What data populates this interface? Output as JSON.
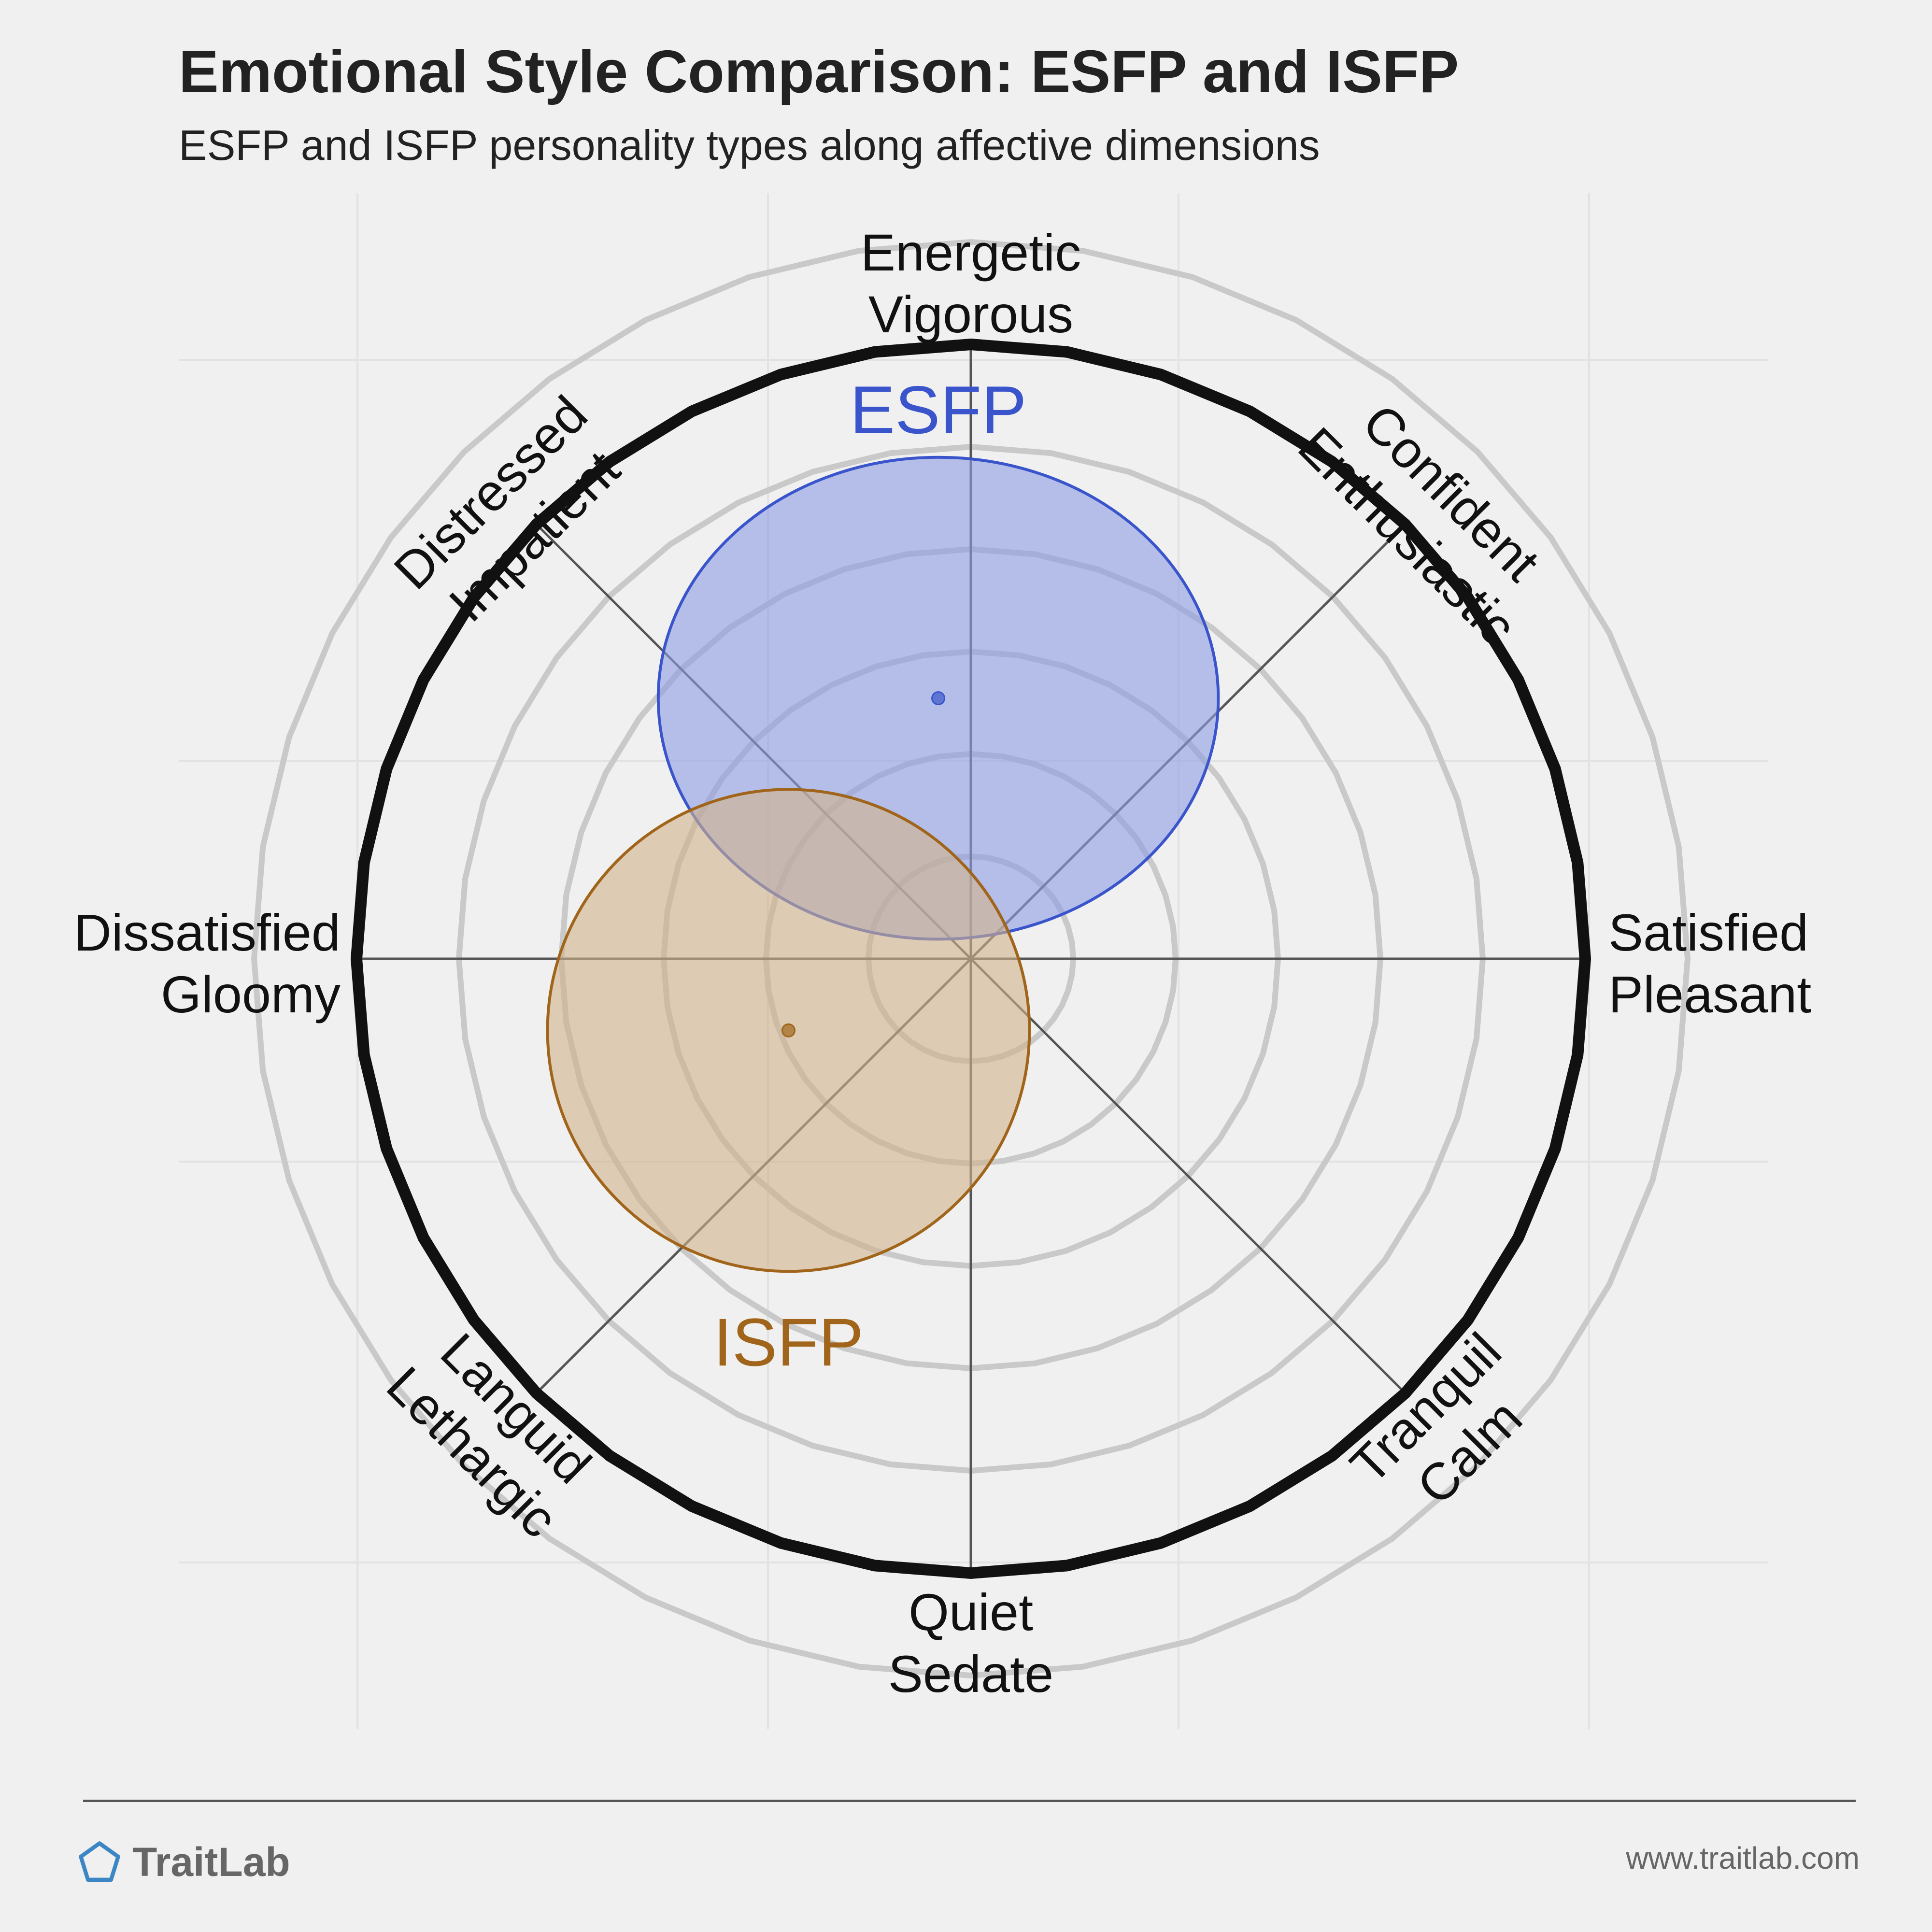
{
  "header": {
    "title": "Emotional Style Comparison: ESFP and ISFP",
    "subtitle": "ESFP and ISFP personality types along affective dimensions"
  },
  "chart_data": {
    "type": "scatter",
    "title": "Emotional Style Comparison: ESFP and ISFP",
    "subtitle": "ESFP and ISFP personality types along affective dimensions",
    "axes": {
      "x_negative": [
        "Dissatisfied",
        "Gloomy"
      ],
      "x_positive": [
        "Satisfied",
        "Pleasant"
      ],
      "y_positive": [
        "Energetic",
        "Vigorous"
      ],
      "y_negative": [
        "Quiet",
        "Sedate"
      ],
      "diag_top_left": [
        "Distressed",
        "Impatient"
      ],
      "diag_top_right": [
        "Confident",
        "Enthusiastic"
      ],
      "diag_bottom_left": [
        "Languid",
        "Lethargic"
      ],
      "diag_bottom_right": [
        "Tranquil",
        "Calm"
      ]
    },
    "xlim": [
      -1,
      1
    ],
    "ylim": [
      -1,
      1
    ],
    "grid": true,
    "series": [
      {
        "name": "ESFP",
        "x": -0.05,
        "y": 0.4,
        "spread_x": 0.43,
        "spread_y": 0.37,
        "color": "#3a55cc",
        "fill": "#8c9de3"
      },
      {
        "name": "ISFP",
        "x": -0.28,
        "y": -0.11,
        "spread_x": 0.37,
        "spread_y": 0.37,
        "color": "#a0651a",
        "fill": "#d2b38c"
      }
    ]
  },
  "footer": {
    "brand": "TraitLab",
    "url": "www.traitlab.com"
  }
}
